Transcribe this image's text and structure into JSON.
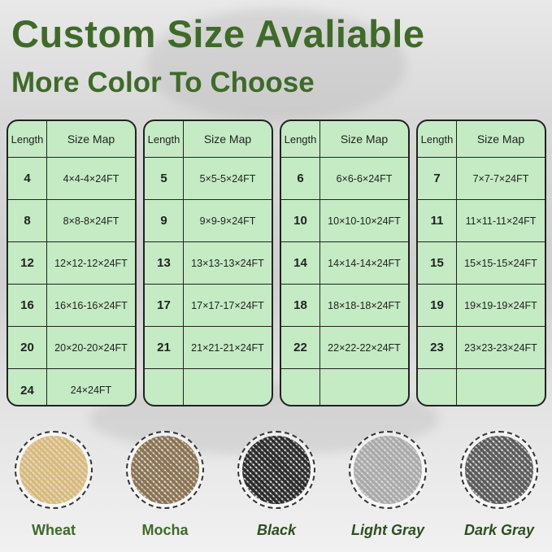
{
  "title": "Custom Size Avaliable",
  "subtitle": "More Color To Choose",
  "table_headers": {
    "length": "Length",
    "size_map": "Size Map"
  },
  "tables": [
    {
      "rows": [
        {
          "length": "4",
          "size": "4×4-4×24FT"
        },
        {
          "length": "8",
          "size": "8×8-8×24FT"
        },
        {
          "length": "12",
          "size": "12×12-12×24FT"
        },
        {
          "length": "16",
          "size": "16×16-16×24FT"
        },
        {
          "length": "20",
          "size": "20×20-20×24FT"
        },
        {
          "length": "24",
          "size": "24×24FT"
        }
      ]
    },
    {
      "rows": [
        {
          "length": "5",
          "size": "5×5-5×24FT"
        },
        {
          "length": "9",
          "size": "9×9-9×24FT"
        },
        {
          "length": "13",
          "size": "13×13-13×24FT"
        },
        {
          "length": "17",
          "size": "17×17-17×24FT"
        },
        {
          "length": "21",
          "size": "21×21-21×24FT"
        },
        {
          "length": "",
          "size": ""
        }
      ]
    },
    {
      "rows": [
        {
          "length": "6",
          "size": "6×6-6×24FT"
        },
        {
          "length": "10",
          "size": "10×10-10×24FT"
        },
        {
          "length": "14",
          "size": "14×14-14×24FT"
        },
        {
          "length": "18",
          "size": "18×18-18×24FT"
        },
        {
          "length": "22",
          "size": "22×22-22×24FT"
        },
        {
          "length": "",
          "size": ""
        }
      ]
    },
    {
      "rows": [
        {
          "length": "7",
          "size": "7×7-7×24FT"
        },
        {
          "length": "11",
          "size": "11×11-11×24FT"
        },
        {
          "length": "15",
          "size": "15×15-15×24FT"
        },
        {
          "length": "19",
          "size": "19×19-19×24FT"
        },
        {
          "length": "23",
          "size": "23×23-23×24FT"
        },
        {
          "length": "",
          "size": ""
        }
      ]
    }
  ],
  "colors": [
    {
      "label": "Wheat",
      "swatch": "#d9b978",
      "italic": false
    },
    {
      "label": "Mocha",
      "swatch": "#8a7250",
      "italic": false
    },
    {
      "label": "Black",
      "swatch": "#2b2b2b",
      "italic": true
    },
    {
      "label": "Light Gray",
      "swatch": "#a9a9a9",
      "italic": true
    },
    {
      "label": "Dark Gray",
      "swatch": "#5a5a5a",
      "italic": true
    }
  ]
}
